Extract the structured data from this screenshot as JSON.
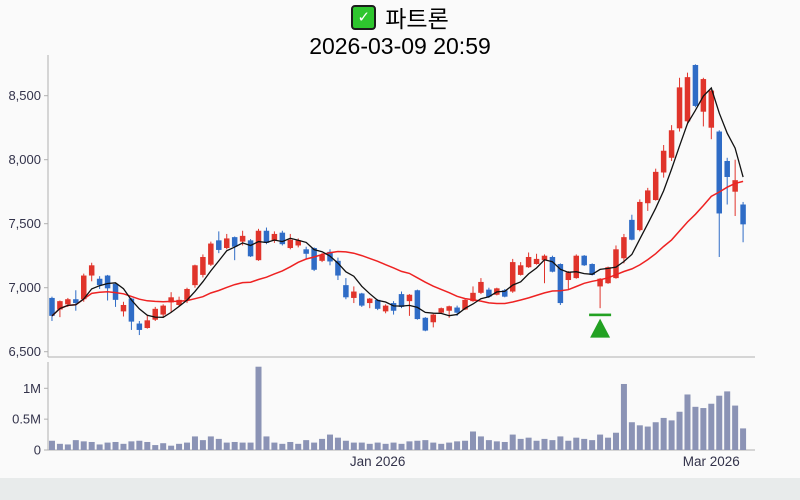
{
  "header": {
    "checkbox_icon": "green-checked-box",
    "title": "파트론",
    "datetime": "2026-03-09 20:59"
  },
  "chart_data": {
    "type": "candlestick",
    "title": "파트론",
    "subtitle": "2026-03-09 20:59",
    "legend_position": "none",
    "grid": false,
    "price_axis": {
      "tick_labels": [
        "8,500",
        "8,000",
        "7,500",
        "7,000",
        "6,500"
      ],
      "tick_values": [
        8500,
        8000,
        7500,
        7000,
        6500
      ],
      "range": [
        6380,
        8820
      ]
    },
    "volume_axis": {
      "tick_labels": [
        "1M",
        "0.5M",
        "0"
      ],
      "tick_values_m": [
        1,
        0.5,
        0
      ],
      "range_m": [
        0,
        1.45
      ]
    },
    "x_axis": {
      "ticks": [
        {
          "label": "Jan 2026",
          "index": 41
        },
        {
          "label": "Mar 2026",
          "index": 83
        }
      ]
    },
    "colors": {
      "up": "#e0342b",
      "down": "#2f6cc6",
      "volume": "#8b93b5",
      "ma_short": "#111111",
      "ma_long": "#ee2222",
      "axis": "#b0b0b0",
      "tick_text": "#33334b",
      "marker": "#22a122"
    },
    "moving_averages": [
      {
        "name": "short",
        "period": 5,
        "color_key": "ma_short"
      },
      {
        "name": "long",
        "period": 20,
        "color_key": "ma_long"
      }
    ],
    "marker": {
      "type": "buy-triangle-up",
      "index": 69,
      "price_line": 6790
    },
    "candles_ohlc": [
      [
        6920,
        6930,
        6740,
        6780
      ],
      [
        6830,
        6900,
        6770,
        6895
      ],
      [
        6870,
        6920,
        6850,
        6910
      ],
      [
        6910,
        6980,
        6820,
        6880
      ],
      [
        6910,
        7110,
        6890,
        7095
      ],
      [
        7095,
        7195,
        7050,
        7175
      ],
      [
        7070,
        7090,
        6990,
        7020
      ],
      [
        7095,
        7100,
        6900,
        6995
      ],
      [
        7030,
        7040,
        6850,
        6905
      ],
      [
        6815,
        6890,
        6775,
        6865
      ],
      [
        6915,
        6920,
        6670,
        6735
      ],
      [
        6720,
        6740,
        6630,
        6670
      ],
      [
        6685,
        6790,
        6680,
        6745
      ],
      [
        6750,
        6850,
        6740,
        6835
      ],
      [
        6790,
        6870,
        6765,
        6860
      ],
      [
        6885,
        6965,
        6810,
        6925
      ],
      [
        6865,
        6930,
        6855,
        6905
      ],
      [
        6905,
        7000,
        6880,
        6990
      ],
      [
        7020,
        7180,
        7000,
        7175
      ],
      [
        7100,
        7260,
        7080,
        7240
      ],
      [
        7180,
        7360,
        7170,
        7345
      ],
      [
        7370,
        7440,
        7270,
        7295
      ],
      [
        7310,
        7420,
        7300,
        7385
      ],
      [
        7395,
        7400,
        7215,
        7320
      ],
      [
        7360,
        7445,
        7330,
        7405
      ],
      [
        7370,
        7380,
        7240,
        7245
      ],
      [
        7215,
        7460,
        7210,
        7445
      ],
      [
        7445,
        7470,
        7340,
        7350
      ],
      [
        7365,
        7440,
        7350,
        7420
      ],
      [
        7430,
        7445,
        7330,
        7340
      ],
      [
        7310,
        7420,
        7300,
        7375
      ],
      [
        7330,
        7385,
        7315,
        7370
      ],
      [
        7300,
        7320,
        7225,
        7265
      ],
      [
        7310,
        7315,
        7130,
        7140
      ],
      [
        7210,
        7270,
        7200,
        7255
      ],
      [
        7280,
        7300,
        7175,
        7205
      ],
      [
        7210,
        7235,
        7060,
        7095
      ],
      [
        7020,
        7075,
        6910,
        6925
      ],
      [
        6920,
        7010,
        6880,
        6970
      ],
      [
        6955,
        6960,
        6850,
        6860
      ],
      [
        6880,
        6920,
        6840,
        6915
      ],
      [
        6905,
        6910,
        6825,
        6835
      ],
      [
        6815,
        6870,
        6800,
        6860
      ],
      [
        6880,
        6895,
        6790,
        6820
      ],
      [
        6950,
        6970,
        6840,
        6850
      ],
      [
        6895,
        6950,
        6780,
        6945
      ],
      [
        6980,
        6985,
        6750,
        6755
      ],
      [
        6765,
        6770,
        6660,
        6665
      ],
      [
        6730,
        6795,
        6690,
        6790
      ],
      [
        6805,
        6845,
        6800,
        6840
      ],
      [
        6820,
        6860,
        6765,
        6855
      ],
      [
        6845,
        6860,
        6780,
        6805
      ],
      [
        6830,
        6910,
        6825,
        6905
      ],
      [
        6895,
        7010,
        6890,
        6960
      ],
      [
        6960,
        7075,
        6950,
        7045
      ],
      [
        6985,
        7000,
        6920,
        6930
      ],
      [
        6945,
        7000,
        6940,
        6995
      ],
      [
        6980,
        6990,
        6925,
        6930
      ],
      [
        6970,
        7225,
        6960,
        7200
      ],
      [
        7100,
        7200,
        7095,
        7175
      ],
      [
        7160,
        7275,
        7155,
        7240
      ],
      [
        7185,
        7265,
        7180,
        7225
      ],
      [
        7215,
        7260,
        7035,
        7250
      ],
      [
        7240,
        7250,
        7120,
        7125
      ],
      [
        7185,
        7190,
        6865,
        6880
      ],
      [
        7060,
        7130,
        6990,
        7120
      ],
      [
        7075,
        7260,
        7070,
        7250
      ],
      [
        7250,
        7255,
        7170,
        7175
      ],
      [
        7185,
        7190,
        7095,
        7100
      ],
      [
        7010,
        7075,
        6840,
        7070
      ],
      [
        7035,
        7165,
        7030,
        7160
      ],
      [
        7075,
        7330,
        7070,
        7300
      ],
      [
        7230,
        7420,
        7190,
        7395
      ],
      [
        7530,
        7570,
        7370,
        7375
      ],
      [
        7450,
        7690,
        7440,
        7670
      ],
      [
        7660,
        7780,
        7600,
        7760
      ],
      [
        7685,
        7930,
        7680,
        7905
      ],
      [
        7900,
        8115,
        7860,
        8070
      ],
      [
        8015,
        8270,
        7990,
        8230
      ],
      [
        8245,
        8640,
        8220,
        8565
      ],
      [
        8300,
        8680,
        8280,
        8645
      ],
      [
        8740,
        8745,
        8410,
        8420
      ],
      [
        8375,
        8640,
        8260,
        8630
      ],
      [
        8250,
        8545,
        8160,
        8540
      ],
      [
        8220,
        8230,
        7240,
        7580
      ],
      [
        7990,
        8015,
        7650,
        7865
      ],
      [
        7750,
        8000,
        7560,
        7840
      ],
      [
        7650,
        7670,
        7355,
        7495
      ]
    ],
    "volumes_m": [
      0.15,
      0.1,
      0.09,
      0.16,
      0.14,
      0.13,
      0.09,
      0.12,
      0.13,
      0.1,
      0.14,
      0.15,
      0.13,
      0.08,
      0.11,
      0.07,
      0.1,
      0.12,
      0.22,
      0.16,
      0.22,
      0.18,
      0.12,
      0.13,
      0.12,
      0.12,
      1.35,
      0.22,
      0.12,
      0.1,
      0.13,
      0.1,
      0.16,
      0.12,
      0.18,
      0.25,
      0.2,
      0.15,
      0.12,
      0.12,
      0.1,
      0.12,
      0.1,
      0.12,
      0.1,
      0.14,
      0.15,
      0.16,
      0.12,
      0.1,
      0.12,
      0.14,
      0.15,
      0.3,
      0.22,
      0.16,
      0.14,
      0.13,
      0.25,
      0.18,
      0.2,
      0.15,
      0.18,
      0.16,
      0.22,
      0.15,
      0.2,
      0.18,
      0.16,
      0.25,
      0.2,
      0.28,
      1.07,
      0.45,
      0.4,
      0.38,
      0.45,
      0.52,
      0.48,
      0.62,
      0.9,
      0.7,
      0.68,
      0.75,
      0.88,
      0.95,
      0.72,
      0.35
    ]
  }
}
